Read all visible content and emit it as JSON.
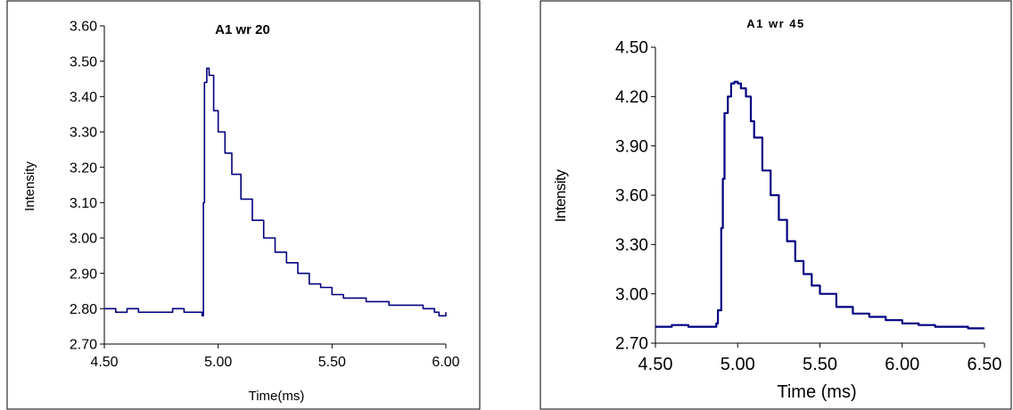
{
  "chart_data": [
    {
      "type": "line",
      "title": "A1 wr 20",
      "xlabel": "Time(ms)",
      "ylabel": "Intensity",
      "xlim": [
        4.5,
        6.0
      ],
      "ylim": [
        2.7,
        3.6
      ],
      "xticks": [
        "4.50",
        "5.00",
        "5.50",
        "6.00"
      ],
      "yticks": [
        "2.70",
        "2.80",
        "2.90",
        "3.00",
        "3.10",
        "3.20",
        "3.30",
        "3.40",
        "3.50",
        "3.60"
      ],
      "grid": false,
      "color": "#000080",
      "series": [
        {
          "x": [
            4.5,
            4.55,
            4.6,
            4.65,
            4.7,
            4.75,
            4.8,
            4.85,
            4.9,
            4.92,
            4.93,
            4.935,
            4.94,
            4.95,
            4.96,
            4.98,
            5.0,
            5.03,
            5.06,
            5.1,
            5.15,
            5.2,
            5.25,
            5.3,
            5.35,
            5.4,
            5.45,
            5.5,
            5.55,
            5.6,
            5.65,
            5.7,
            5.75,
            5.8,
            5.85,
            5.9,
            5.95,
            5.97,
            6.0
          ],
          "y": [
            2.8,
            2.79,
            2.8,
            2.79,
            2.79,
            2.79,
            2.8,
            2.79,
            2.79,
            2.79,
            2.78,
            3.1,
            3.44,
            3.48,
            3.46,
            3.36,
            3.3,
            3.24,
            3.18,
            3.11,
            3.05,
            3.0,
            2.96,
            2.93,
            2.9,
            2.87,
            2.86,
            2.84,
            2.83,
            2.83,
            2.82,
            2.82,
            2.81,
            2.81,
            2.81,
            2.8,
            2.79,
            2.78,
            2.79
          ]
        }
      ]
    },
    {
      "type": "line",
      "title": "A1 wr 45",
      "xlabel": "Time (ms)",
      "ylabel": "Intensity",
      "xlim": [
        4.5,
        6.5
      ],
      "ylim": [
        2.7,
        4.5
      ],
      "xticks": [
        "4.50",
        "5.00",
        "5.50",
        "6.00",
        "6.50"
      ],
      "yticks": [
        "2.70",
        "3.00",
        "3.30",
        "3.60",
        "3.90",
        "4.20",
        "4.50"
      ],
      "grid": false,
      "color": "#000080",
      "series": [
        {
          "x": [
            4.5,
            4.6,
            4.7,
            4.8,
            4.85,
            4.87,
            4.88,
            4.9,
            4.91,
            4.92,
            4.94,
            4.96,
            4.98,
            5.0,
            5.02,
            5.05,
            5.08,
            5.1,
            5.15,
            5.2,
            5.25,
            5.3,
            5.35,
            5.4,
            5.45,
            5.5,
            5.6,
            5.7,
            5.8,
            5.9,
            6.0,
            6.1,
            6.2,
            6.3,
            6.4,
            6.5
          ],
          "y": [
            2.8,
            2.81,
            2.8,
            2.8,
            2.8,
            2.82,
            2.9,
            3.4,
            3.7,
            4.1,
            4.2,
            4.28,
            4.29,
            4.28,
            4.25,
            4.2,
            4.05,
            3.95,
            3.75,
            3.6,
            3.45,
            3.32,
            3.2,
            3.12,
            3.05,
            3.0,
            2.92,
            2.88,
            2.86,
            2.84,
            2.82,
            2.81,
            2.8,
            2.8,
            2.79,
            2.79
          ]
        }
      ]
    }
  ]
}
